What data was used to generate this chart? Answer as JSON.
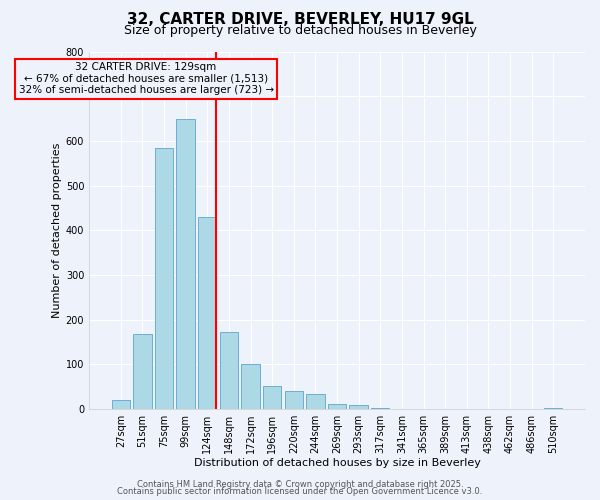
{
  "title": "32, CARTER DRIVE, BEVERLEY, HU17 9GL",
  "subtitle": "Size of property relative to detached houses in Beverley",
  "xlabel": "Distribution of detached houses by size in Beverley",
  "ylabel": "Number of detached properties",
  "bar_labels": [
    "27sqm",
    "51sqm",
    "75sqm",
    "99sqm",
    "124sqm",
    "148sqm",
    "172sqm",
    "196sqm",
    "220sqm",
    "244sqm",
    "269sqm",
    "293sqm",
    "317sqm",
    "341sqm",
    "365sqm",
    "389sqm",
    "413sqm",
    "438sqm",
    "462sqm",
    "486sqm",
    "510sqm"
  ],
  "bar_values": [
    20,
    168,
    583,
    648,
    430,
    173,
    101,
    51,
    40,
    33,
    12,
    10,
    2,
    1,
    0,
    0,
    0,
    0,
    0,
    0,
    2
  ],
  "bar_color": "#add8e6",
  "bar_edge_color": "#6baed6",
  "vline_x_index": 4,
  "vline_color": "red",
  "annotation_title": "32 CARTER DRIVE: 129sqm",
  "annotation_line1": "← 67% of detached houses are smaller (1,513)",
  "annotation_line2": "32% of semi-detached houses are larger (723) →",
  "annotation_box_edge": "red",
  "ylim": [
    0,
    800
  ],
  "yticks": [
    0,
    100,
    200,
    300,
    400,
    500,
    600,
    700,
    800
  ],
  "footer1": "Contains HM Land Registry data © Crown copyright and database right 2025.",
  "footer2": "Contains public sector information licensed under the Open Government Licence v3.0.",
  "bg_color": "#eef2fa",
  "grid_color": "#ffffff",
  "title_fontsize": 11,
  "subtitle_fontsize": 9,
  "axis_label_fontsize": 8,
  "tick_fontsize": 7,
  "annotation_fontsize": 7.5,
  "footer_fontsize": 6
}
